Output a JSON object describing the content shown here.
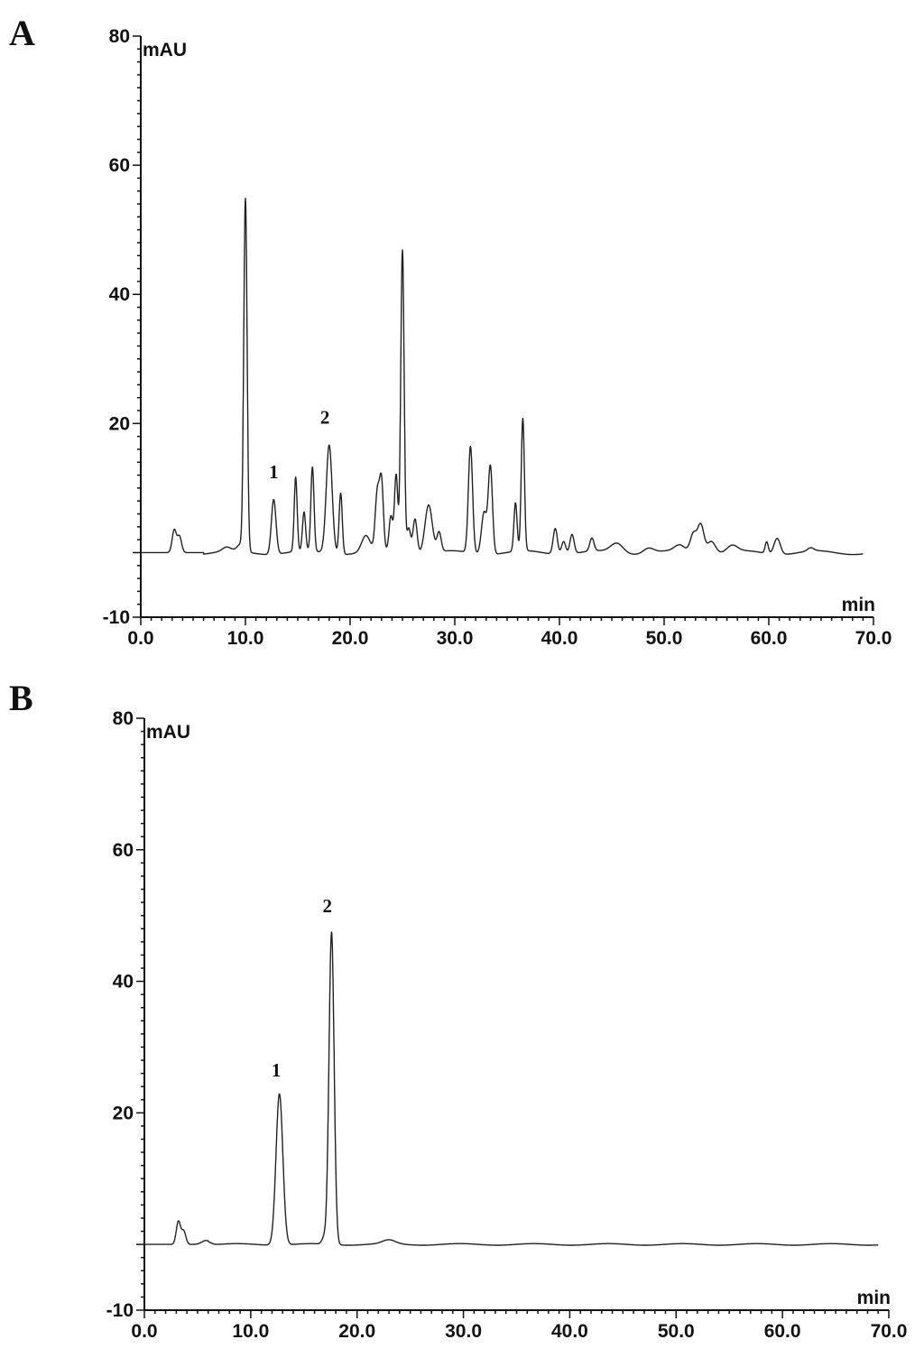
{
  "chart_data": [
    {
      "panel": "A",
      "type": "line",
      "ylabel": "mAU",
      "xlabel": "min",
      "xlim": [
        0,
        70
      ],
      "ylim": [
        -10,
        80
      ],
      "xticks": [
        "0.0",
        "10.0",
        "20.0",
        "30.0",
        "40.0",
        "50.0",
        "60.0",
        "70.0"
      ],
      "yticks": [
        "80",
        "60",
        "40",
        "20",
        "-10"
      ],
      "baseline": 0,
      "trace_end": 69,
      "peaks": [
        {
          "x": 3.2,
          "h": 3.5,
          "w": 0.2
        },
        {
          "x": 3.7,
          "h": 2.5,
          "w": 0.2
        },
        {
          "x": 8.2,
          "h": 0.6,
          "w": 0.4
        },
        {
          "x": 9.5,
          "h": 1.0,
          "w": 0.3
        },
        {
          "x": 10.0,
          "h": 54.5,
          "w": 0.16
        },
        {
          "x": 12.7,
          "h": 8.5,
          "w": 0.22
        },
        {
          "x": 14.8,
          "h": 11.5,
          "w": 0.14
        },
        {
          "x": 15.6,
          "h": 6.0,
          "w": 0.15
        },
        {
          "x": 16.4,
          "h": 13.0,
          "w": 0.15
        },
        {
          "x": 18.0,
          "h": 16.8,
          "w": 0.28
        },
        {
          "x": 19.1,
          "h": 9.5,
          "w": 0.15
        },
        {
          "x": 21.5,
          "h": 2.5,
          "w": 0.4
        },
        {
          "x": 22.6,
          "h": 9.0,
          "w": 0.2
        },
        {
          "x": 23.0,
          "h": 10.5,
          "w": 0.18
        },
        {
          "x": 23.9,
          "h": 5.5,
          "w": 0.18
        },
        {
          "x": 24.4,
          "h": 12.0,
          "w": 0.16
        },
        {
          "x": 25.0,
          "h": 47.0,
          "w": 0.16
        },
        {
          "x": 25.6,
          "h": 4.0,
          "w": 0.18
        },
        {
          "x": 26.2,
          "h": 5.5,
          "w": 0.2
        },
        {
          "x": 27.5,
          "h": 7.5,
          "w": 0.35
        },
        {
          "x": 28.5,
          "h": 3.0,
          "w": 0.2
        },
        {
          "x": 31.5,
          "h": 16.5,
          "w": 0.2
        },
        {
          "x": 32.8,
          "h": 6.5,
          "w": 0.25
        },
        {
          "x": 33.4,
          "h": 13.5,
          "w": 0.2
        },
        {
          "x": 35.8,
          "h": 7.5,
          "w": 0.15
        },
        {
          "x": 36.5,
          "h": 20.5,
          "w": 0.15
        },
        {
          "x": 39.6,
          "h": 4.0,
          "w": 0.2
        },
        {
          "x": 40.4,
          "h": 2.0,
          "w": 0.2
        },
        {
          "x": 41.2,
          "h": 3.0,
          "w": 0.2
        },
        {
          "x": 43.1,
          "h": 2.0,
          "w": 0.2
        },
        {
          "x": 45.5,
          "h": 1.5,
          "w": 0.6
        },
        {
          "x": 48.5,
          "h": 0.8,
          "w": 0.5
        },
        {
          "x": 51.5,
          "h": 1.0,
          "w": 0.5
        },
        {
          "x": 52.8,
          "h": 3.0,
          "w": 0.3
        },
        {
          "x": 53.5,
          "h": 4.5,
          "w": 0.3
        },
        {
          "x": 54.5,
          "h": 2.0,
          "w": 0.4
        },
        {
          "x": 56.5,
          "h": 1.0,
          "w": 0.5
        },
        {
          "x": 59.8,
          "h": 1.8,
          "w": 0.15
        },
        {
          "x": 60.8,
          "h": 2.5,
          "w": 0.3
        },
        {
          "x": 64.0,
          "h": 0.5,
          "w": 0.3
        }
      ],
      "annotations": [
        {
          "text": "1",
          "x": 12.7,
          "y": 11.5
        },
        {
          "text": "2",
          "x": 17.6,
          "y": 20.0
        }
      ]
    },
    {
      "panel": "B",
      "type": "line",
      "ylabel": "mAU",
      "xlabel": "min",
      "xlim": [
        0,
        70
      ],
      "ylim": [
        -10,
        80
      ],
      "xticks": [
        "0.0",
        "10.0",
        "20.0",
        "30.0",
        "40.0",
        "50.0",
        "60.0",
        "70.0"
      ],
      "yticks": [
        "80",
        "60",
        "40",
        "20",
        "-10"
      ],
      "baseline": 0,
      "trace_end": 69,
      "peaks": [
        {
          "x": 3.2,
          "h": 3.5,
          "w": 0.2
        },
        {
          "x": 3.7,
          "h": 2.0,
          "w": 0.2
        },
        {
          "x": 5.8,
          "h": 0.6,
          "w": 0.4
        },
        {
          "x": 12.7,
          "h": 23.0,
          "w": 0.32
        },
        {
          "x": 16.9,
          "h": 1.0,
          "w": 0.2
        },
        {
          "x": 17.6,
          "h": 47.5,
          "w": 0.24
        },
        {
          "x": 23.0,
          "h": 0.6,
          "w": 0.6
        }
      ],
      "annotations": [
        {
          "text": "1",
          "x": 12.4,
          "y": 25.5
        },
        {
          "text": "2",
          "x": 17.2,
          "y": 50.5
        }
      ]
    }
  ]
}
